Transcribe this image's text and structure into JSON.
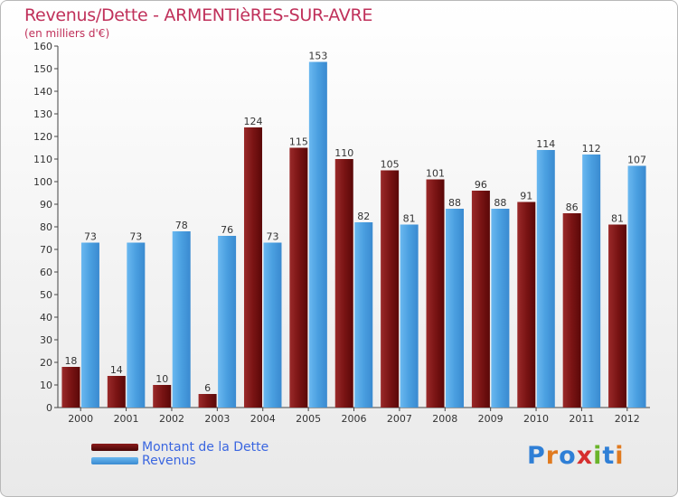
{
  "header": {
    "title": "Revenus/Dette - ARMENTIèRES-SUR-AVRE",
    "subtitle": "(en milliers d'€)"
  },
  "legend": {
    "items": [
      {
        "label": "Montant de la Dette",
        "color": "#7a1010"
      },
      {
        "label": "Revenus",
        "color": "#4a9fe0"
      }
    ]
  },
  "logo": {
    "letters": [
      "P",
      "r",
      "o",
      "x",
      "i",
      "t",
      "i"
    ],
    "colors": [
      "#2f7fd6",
      "#e07a1f",
      "#2f7fd6",
      "#d62f2f",
      "#6ab42a",
      "#2f7fd6",
      "#e07a1f"
    ]
  },
  "chart_data": {
    "type": "bar",
    "categories": [
      "2000",
      "2001",
      "2002",
      "2003",
      "2004",
      "2005",
      "2006",
      "2007",
      "2008",
      "2009",
      "2010",
      "2011",
      "2012"
    ],
    "series": [
      {
        "name": "Montant de la Dette",
        "color": "#7a1010",
        "values": [
          18,
          14,
          10,
          6,
          124,
          115,
          110,
          105,
          101,
          96,
          91,
          86,
          81
        ]
      },
      {
        "name": "Revenus",
        "color": "#4a9fe0",
        "values": [
          73,
          73,
          78,
          76,
          73,
          153,
          82,
          81,
          88,
          88,
          114,
          112,
          107
        ]
      }
    ],
    "ylim": [
      0,
      160
    ],
    "yticks": [
      0,
      10,
      20,
      30,
      40,
      50,
      60,
      70,
      80,
      90,
      100,
      110,
      120,
      130,
      140,
      150,
      160
    ],
    "grid": false,
    "legend_position": "bottom-left"
  }
}
